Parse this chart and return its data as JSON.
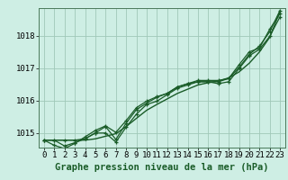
{
  "background_color": "#ceeee4",
  "plot_bg_color": "#ceeee4",
  "grid_color": "#a0c8b8",
  "line_color": "#1a5c28",
  "marker_color": "#1a5c28",
  "xlabel": "Graphe pression niveau de la mer (hPa)",
  "xlabel_fontsize": 7.5,
  "tick_fontsize": 6.5,
  "ylim": [
    1014.55,
    1018.85
  ],
  "xlim": [
    -0.5,
    23.5
  ],
  "yticks": [
    1015,
    1016,
    1017,
    1018
  ],
  "xticks": [
    0,
    1,
    2,
    3,
    4,
    5,
    6,
    7,
    8,
    9,
    10,
    11,
    12,
    13,
    14,
    15,
    16,
    17,
    18,
    19,
    20,
    21,
    22,
    23
  ],
  "smooth_series": [
    1014.78,
    1014.78,
    1014.78,
    1014.78,
    1014.78,
    1014.82,
    1014.9,
    1014.98,
    1015.2,
    1015.45,
    1015.7,
    1015.88,
    1016.05,
    1016.22,
    1016.35,
    1016.48,
    1016.55,
    1016.6,
    1016.7,
    1016.88,
    1017.15,
    1017.5,
    1017.95,
    1018.75
  ],
  "series": [
    [
      1014.78,
      1014.78,
      1014.6,
      1014.7,
      1014.82,
      1015.0,
      1015.2,
      1014.8,
      1015.3,
      1015.72,
      1015.92,
      1016.1,
      1016.22,
      1016.42,
      1016.52,
      1016.62,
      1016.62,
      1016.62,
      1016.68,
      1017.1,
      1017.5,
      1017.62,
      1018.2,
      1018.68
    ],
    [
      1014.78,
      1014.62,
      1014.52,
      1014.68,
      1014.88,
      1015.08,
      1015.22,
      1015.02,
      1015.38,
      1015.78,
      1015.98,
      1016.12,
      1016.22,
      1016.42,
      1016.52,
      1016.58,
      1016.58,
      1016.52,
      1016.58,
      1016.98,
      1017.38,
      1017.58,
      1017.98,
      1018.58
    ],
    [
      1014.78,
      1014.78,
      1014.78,
      1014.78,
      1014.82,
      1015.0,
      1015.0,
      1014.72,
      1015.18,
      1015.58,
      1015.88,
      1015.98,
      1016.18,
      1016.38,
      1016.48,
      1016.58,
      1016.58,
      1016.58,
      1016.68,
      1017.02,
      1017.42,
      1017.68,
      1018.12,
      1018.78
    ]
  ]
}
